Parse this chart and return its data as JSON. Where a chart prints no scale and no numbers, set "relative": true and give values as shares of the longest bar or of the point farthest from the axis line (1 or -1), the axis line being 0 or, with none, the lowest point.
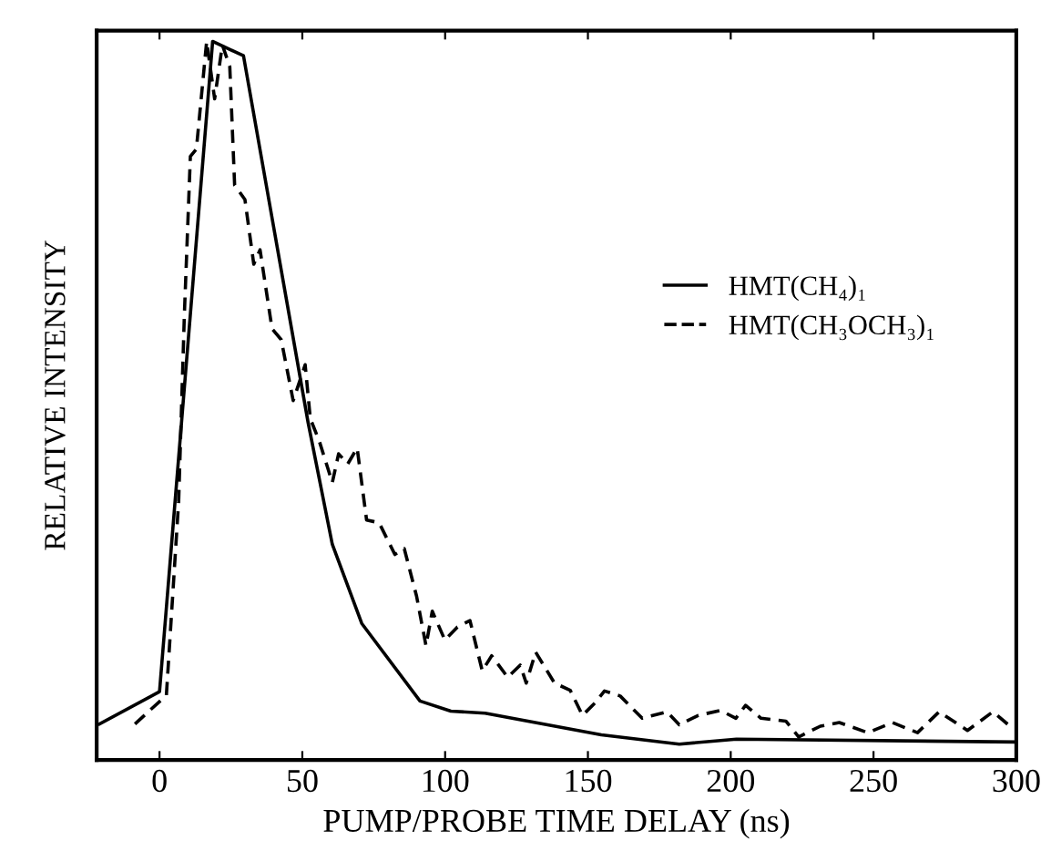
{
  "chart_data": {
    "type": "line",
    "relative": true,
    "xlabel": "PUMP/PROBE TIME DELAY (ns)",
    "ylabel": "RELATIVE INTENSITY",
    "xlim": [
      -22,
      300
    ],
    "xticks": [
      0,
      50,
      100,
      150,
      200,
      250,
      300
    ],
    "legend": "right",
    "grid": false,
    "marker": "none",
    "series": [
      {
        "name": "HMT(CH₄)₁",
        "color": "#000000",
        "line_style": "solid",
        "x": [
          -21,
          0,
          18.6,
          29.4,
          52,
          60.5,
          70.8,
          91.2,
          102,
          114,
          154.7,
          182,
          202,
          300
        ],
        "values": [
          0.05,
          0.095,
          1.0,
          0.98,
          0.47,
          0.3,
          0.19,
          0.082,
          0.068,
          0.065,
          0.035,
          0.022,
          0.029,
          0.025
        ]
      },
      {
        "name": "HMT(CH₃OCH₃)₁",
        "color": "#000000",
        "line_style": "dashed",
        "x": [
          -8.6,
          2.4,
          6.7,
          8.7,
          10.8,
          12.9,
          16.5,
          19.3,
          22,
          24.6,
          26.3,
          29.9,
          33,
          35.2,
          39.4,
          42.6,
          46.8,
          51,
          52.8,
          56,
          60.5,
          62.7,
          65.9,
          69.2,
          72.5,
          76.9,
          82.4,
          85.7,
          90,
          93.3,
          95.5,
          99.9,
          104.3,
          108.7,
          113,
          116.3,
          121.9,
          126.3,
          128.4,
          131.7,
          138.3,
          143.8,
          148.1,
          152.6,
          155.8,
          161.3,
          169,
          177.7,
          182,
          188.7,
          196.4,
          201.8,
          205.2,
          210.6,
          219.3,
          223.8,
          231.4,
          238,
          248,
          256.6,
          265.4,
          273,
          282.9,
          291.8,
          297.2,
          300
        ],
        "values": [
          0.05,
          0.09,
          0.36,
          0.62,
          0.84,
          0.85,
          1.0,
          0.92,
          0.995,
          0.965,
          0.8,
          0.78,
          0.69,
          0.71,
          0.6,
          0.585,
          0.5,
          0.55,
          0.475,
          0.443,
          0.386,
          0.426,
          0.412,
          0.434,
          0.334,
          0.33,
          0.286,
          0.294,
          0.228,
          0.159,
          0.207,
          0.167,
          0.185,
          0.194,
          0.124,
          0.145,
          0.115,
          0.132,
          0.107,
          0.15,
          0.107,
          0.097,
          0.062,
          0.08,
          0.096,
          0.089,
          0.058,
          0.067,
          0.049,
          0.062,
          0.069,
          0.058,
          0.076,
          0.058,
          0.054,
          0.032,
          0.047,
          0.052,
          0.038,
          0.052,
          0.038,
          0.067,
          0.041,
          0.067,
          0.049,
          0.045
        ]
      }
    ]
  }
}
